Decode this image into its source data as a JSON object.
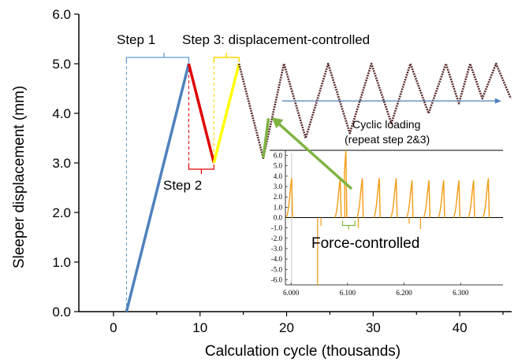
{
  "chart_data": [
    {
      "type": "line",
      "xlabel": "Calculation cycle (thousands)",
      "ylabel": "Sleeper displacement (mm)",
      "xlim": [
        -4,
        46
      ],
      "ylim": [
        0,
        6
      ],
      "xticks": [
        0,
        10,
        20,
        30,
        40
      ],
      "yticks": [
        "0.0",
        "1.0",
        "2.0",
        "3.0",
        "4.0",
        "5.0",
        "6.0"
      ],
      "grid": false,
      "series": [
        {
          "name": "",
          "color": "#4f81bd",
          "x": [
            1.5,
            8.7
          ],
          "y": [
            0.0,
            5.0
          ]
        },
        {
          "name": "",
          "color": "#e00000",
          "x": [
            8.7,
            11.6
          ],
          "y": [
            5.0,
            3.0
          ]
        },
        {
          "name": "",
          "color": "#ffff00",
          "x": [
            11.6,
            14.5
          ],
          "y": [
            3.0,
            5.0
          ]
        },
        {
          "name": "",
          "color": "#5a2d2d",
          "x": [
            14.5,
            17.3,
            19.7,
            22.2,
            24.8,
            27.3,
            29.8,
            32.1,
            34.3,
            36.4,
            38.4,
            39.9,
            41.2,
            42.6,
            44.2,
            45.9
          ],
          "y": [
            5.0,
            3.1,
            5.0,
            3.5,
            5.0,
            3.6,
            5.0,
            3.8,
            5.0,
            4.0,
            5.0,
            4.2,
            5.0,
            4.3,
            5.0,
            4.3
          ]
        },
        {
          "name": "",
          "color": "#7fb342",
          "x": [
            17.3,
            17.9
          ],
          "y": [
            3.1,
            3.9
          ]
        }
      ],
      "annotations": {
        "step1": "Step 1",
        "step2": "Step 2",
        "step3": "Step 3: displacement-controlled",
        "cyclic_line1": "Cyclic loading",
        "cyclic_line2": "(repeat step 2&3)",
        "force_controlled": "Force-controlled"
      }
    },
    {
      "type": "line",
      "xlabel": "",
      "ylabel": "",
      "xlim": [
        5.99,
        6.375
      ],
      "ylim": [
        -6.5,
        6.5
      ],
      "xticks": [
        "6.000",
        "6.100",
        "6.200",
        "6.300"
      ],
      "yticks": [
        "6.0",
        "5.0",
        "4.0",
        "3.0",
        "2.0",
        "1.0",
        "0.0",
        "-1.0",
        "-2.0",
        "-3.0",
        "-4.0",
        "-5.0",
        "-6.0"
      ],
      "color": "#f39c12",
      "spikes": [
        {
          "x": 6.001,
          "y": 3.8
        },
        {
          "x": 6.053,
          "y": -0.8
        },
        {
          "x": 6.087,
          "y": 3.8
        },
        {
          "x": 6.097,
          "y": 6.5
        },
        {
          "x": 6.126,
          "y": 3.8
        },
        {
          "x": 6.156,
          "y": 3.8
        },
        {
          "x": 6.186,
          "y": 3.8
        },
        {
          "x": 6.214,
          "y": 3.6
        },
        {
          "x": 6.244,
          "y": 3.6
        },
        {
          "x": 6.27,
          "y": 3.6
        },
        {
          "x": 6.297,
          "y": 3.6
        },
        {
          "x": 6.323,
          "y": 3.6
        },
        {
          "x": 6.349,
          "y": 3.8
        }
      ],
      "dips": [
        {
          "x": 6.047,
          "y": -6.5
        },
        {
          "x": 6.119,
          "y": -1.0
        },
        {
          "x": 6.209,
          "y": -0.6
        },
        {
          "x": 6.229,
          "y": -1.1
        }
      ]
    }
  ]
}
